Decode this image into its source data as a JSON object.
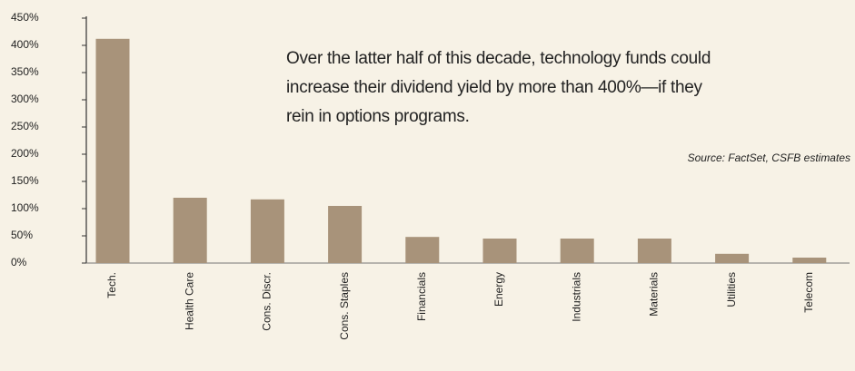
{
  "chart_data": {
    "type": "bar",
    "annotation": [
      "Over the latter half of this decade, technology funds could",
      "increase their dividend yield by more than 400%—if they",
      "rein in options programs."
    ],
    "source": "Source: FactSet, CSFB estimates",
    "categories": [
      "Tech.",
      "Health Care",
      "Cons. Discr.",
      "Cons. Staples",
      "Financials",
      "Energy",
      "Industrials",
      "Materials",
      "Utilities",
      "Telecom"
    ],
    "values": [
      412,
      120,
      117,
      105,
      48,
      45,
      45,
      45,
      17,
      10
    ],
    "color": "#a8937a",
    "ylim": [
      0,
      450
    ],
    "yticks": [
      {
        "value": 0,
        "label": "0%"
      },
      {
        "value": 50,
        "label": "50%"
      },
      {
        "value": 100,
        "label": "100%"
      },
      {
        "value": 150,
        "label": "150%"
      },
      {
        "value": 200,
        "label": "200%"
      },
      {
        "value": 250,
        "label": "250%"
      },
      {
        "value": 300,
        "label": "300%"
      },
      {
        "value": 350,
        "label": "350%"
      },
      {
        "value": 400,
        "label": "400%"
      },
      {
        "value": 450,
        "label": "450%"
      }
    ],
    "grid": false
  }
}
